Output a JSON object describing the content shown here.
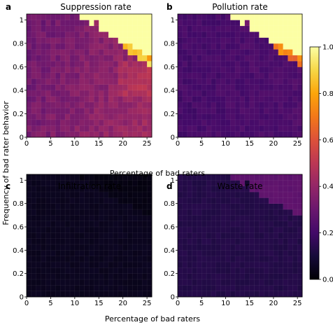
{
  "figure": {
    "shared_xlabel_top": "Percentage of bad raters",
    "shared_xlabel_bottom": "Percentage of bad raters",
    "shared_ylabel": "Frequency of bad rater behavior"
  },
  "colorbar": {
    "colormap": "inferno",
    "min": 0.0,
    "max": 1.0,
    "ticks": [
      0.0,
      0.2,
      0.4,
      0.6,
      0.8,
      1.0
    ],
    "tick_labels": [
      "0.0",
      "0.2",
      "0.4",
      "0.6",
      "0.8",
      "1.0"
    ]
  },
  "chart_data": [
    {
      "type": "heatmap",
      "panel_letter": "a",
      "title": "Suppression rate",
      "xlabel": "",
      "ylabel": "",
      "x_ticks": [
        0,
        5,
        10,
        15,
        20,
        25
      ],
      "y_ticks": [
        0,
        0.2,
        0.4,
        0.6,
        0.8,
        1
      ],
      "y_tick_labels": [
        "0",
        "0.2",
        "0.4",
        "0.6",
        "0.8",
        "1"
      ],
      "xlim": [
        0,
        26
      ],
      "ylim": [
        0,
        1.05
      ],
      "grid": true,
      "pattern": "~0.3-0.5 across most of grid, rising toward lower-right; value 1.0 in upper-right region (x >= ~11, y above a boundary descending from ~1.0 at x=11 to ~0.65 at x=26), with orange/yellow cells along the boundary",
      "rows_y_bottom_to_top": "21 rows, y = 0.00 to 1.00 step 0.05",
      "cols_x_left_to_right": "26 columns, x = 0 to 25 step 1"
    },
    {
      "type": "heatmap",
      "panel_letter": "b",
      "title": "Pollution rate",
      "xlabel": "",
      "ylabel": "",
      "x_ticks": [
        0,
        5,
        10,
        15,
        20,
        25
      ],
      "y_ticks": [
        0,
        0.2,
        0.4,
        0.6,
        0.8,
        1
      ],
      "y_tick_labels": [
        "0",
        "0.2",
        "0.4",
        "0.6",
        "0.8",
        "1"
      ],
      "xlim": [
        0,
        26
      ],
      "ylim": [
        0,
        1.05
      ],
      "grid": true,
      "pattern": "~0.2-0.25 across most of grid; value 1.0 in upper-right region with the same boundary as panel a, orange cells along the boundary",
      "rows_y_bottom_to_top": "21 rows, y = 0.00 to 1.00 step 0.05",
      "cols_x_left_to_right": "26 columns, x = 0 to 25 step 1"
    },
    {
      "type": "heatmap",
      "panel_letter": "c",
      "title": "Infiltration rate",
      "xlabel": "",
      "ylabel": "",
      "x_ticks": [
        0,
        5,
        10,
        15,
        20,
        25
      ],
      "y_ticks": [
        0,
        0.2,
        0.4,
        0.6,
        0.8,
        1
      ],
      "y_tick_labels": [
        "0",
        "0.2",
        "0.4",
        "0.6",
        "0.8",
        "1"
      ],
      "xlim": [
        0,
        26
      ],
      "ylim": [
        0,
        1.05
      ],
      "grid": true,
      "pattern": "~0.05 across the whole grid, slightly lower (~0.02) in the upper-right region",
      "rows_y_bottom_to_top": "21 rows, y = 0.00 to 1.00 step 0.05",
      "cols_x_left_to_right": "26 columns, x = 0 to 25 step 1"
    },
    {
      "type": "heatmap",
      "panel_letter": "d",
      "title": "Waste rate",
      "xlabel": "",
      "ylabel": "",
      "x_ticks": [
        0,
        5,
        10,
        15,
        20,
        25
      ],
      "y_ticks": [
        0,
        0.2,
        0.4,
        0.6,
        0.8,
        1
      ],
      "y_tick_labels": [
        "0",
        "0.2",
        "0.4",
        "0.6",
        "0.8",
        "1"
      ],
      "xlim": [
        0,
        26
      ],
      "ylim": [
        0,
        1.05
      ],
      "grid": true,
      "pattern": "~0.13 across most of grid; ~0.27 in the upper-right region bounded like panels a/b",
      "rows_y_bottom_to_top": "21 rows, y = 0.00 to 1.00 step 0.05",
      "cols_x_left_to_right": "26 columns, x = 0 to 25 step 1"
    }
  ]
}
